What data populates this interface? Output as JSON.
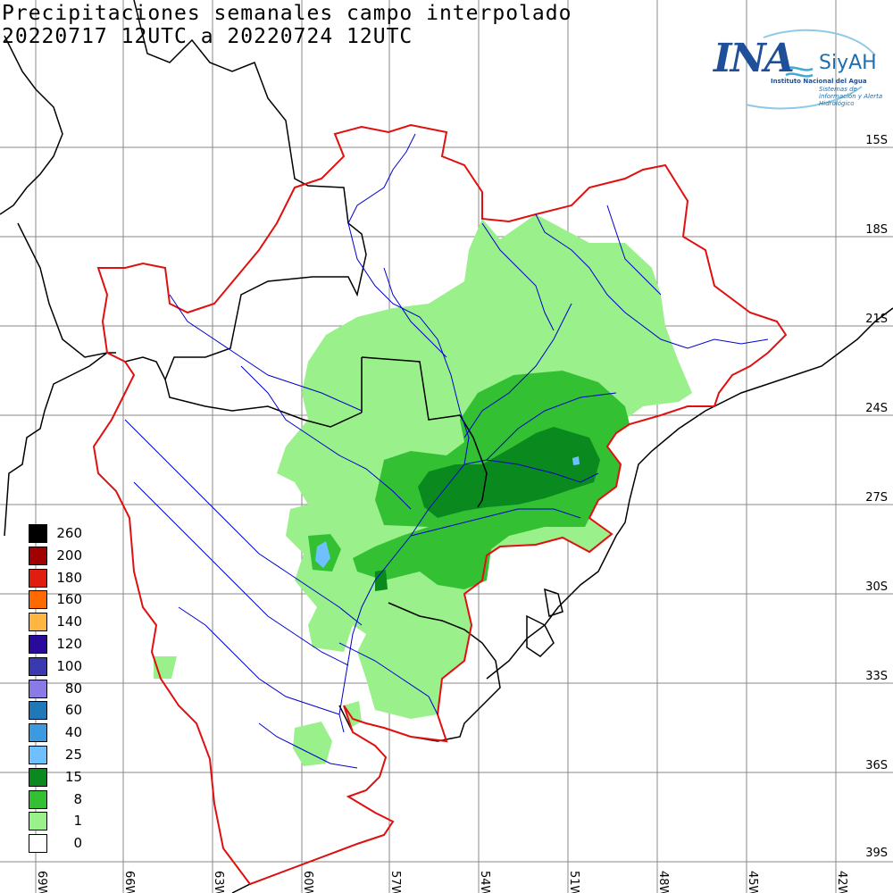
{
  "title": {
    "line1": "Precipitaciones semanales campo interpolado",
    "line2": "20220717 12UTC a 20220724 12UTC"
  },
  "logo": {
    "ina": "INA",
    "siyah": "SiyAH",
    "sub1": "Instituto Nacional del Agua",
    "sub2": "Sistemas de información y Alerta Hidrológico"
  },
  "legend": {
    "items": [
      {
        "label": "260",
        "color": "#000000"
      },
      {
        "label": "200",
        "color": "#a00000"
      },
      {
        "label": "180",
        "color": "#e01e10"
      },
      {
        "label": "160",
        "color": "#ff6a00"
      },
      {
        "label": "140",
        "color": "#ffb640"
      },
      {
        "label": "120",
        "color": "#2a0a9a"
      },
      {
        "label": "100",
        "color": "#3a3ab0"
      },
      {
        "label": "80",
        "color": "#8a7ae6"
      },
      {
        "label": "60",
        "color": "#1f78b8"
      },
      {
        "label": "40",
        "color": "#3c9ae0"
      },
      {
        "label": "25",
        "color": "#6ec0ff"
      },
      {
        "label": "15",
        "color": "#0a8a1e"
      },
      {
        "label": "8",
        "color": "#33c133"
      },
      {
        "label": "1",
        "color": "#9af08a"
      },
      {
        "label": "0",
        "color": "#ffffff"
      }
    ]
  },
  "latitudes": [
    "15S",
    "18S",
    "21S",
    "24S",
    "27S",
    "30S",
    "33S",
    "36S",
    "39S"
  ],
  "longitudes": [
    "69W",
    "66W",
    "63W",
    "60W",
    "57W",
    "54W",
    "51W",
    "48W",
    "45W",
    "42W"
  ],
  "colors": {
    "basin_boundary": "#e01010",
    "rivers": "#0000cc",
    "borders": "#000000",
    "grid": "#888888"
  }
}
